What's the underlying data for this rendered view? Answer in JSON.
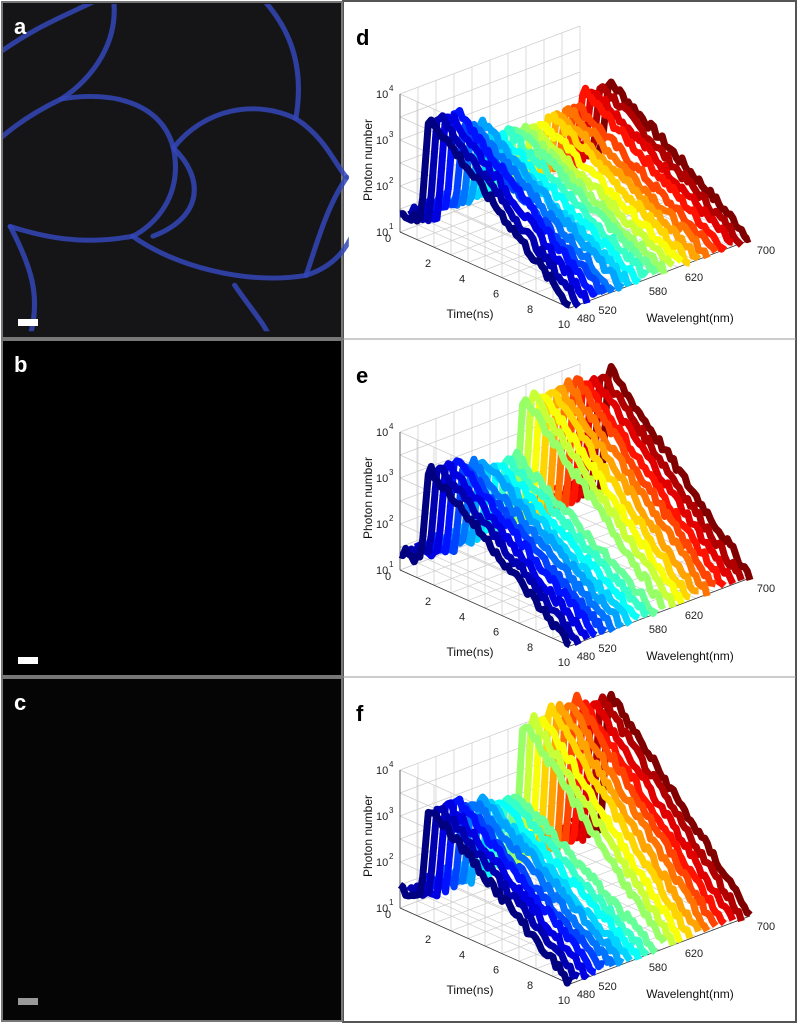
{
  "micrographs": [
    {
      "label": "a"
    },
    {
      "label": "b"
    },
    {
      "label": "c"
    }
  ],
  "plots": [
    {
      "label": "d",
      "y_label": "Photon number",
      "x_label": "Time(ns)",
      "z_label": "Wavelenght(nm)",
      "y_ticks": [
        {
          "base": "10",
          "exponent": "1"
        },
        {
          "base": "10",
          "exponent": "2"
        },
        {
          "base": "10",
          "exponent": "3"
        },
        {
          "base": "10",
          "exponent": "4"
        }
      ],
      "x_ticks": [
        "0",
        "2",
        "4",
        "6",
        "8",
        "10"
      ],
      "z_ticks": [
        "480",
        "520",
        "580",
        "620",
        "700"
      ]
    },
    {
      "label": "e",
      "y_label": "Photon number",
      "x_label": "Time(ns)",
      "z_label": "Wavelenght(nm)",
      "y_ticks": [
        {
          "base": "10",
          "exponent": "1"
        },
        {
          "base": "10",
          "exponent": "2"
        },
        {
          "base": "10",
          "exponent": "3"
        },
        {
          "base": "10",
          "exponent": "4"
        }
      ],
      "x_ticks": [
        "0",
        "2",
        "4",
        "6",
        "8",
        "10"
      ],
      "z_ticks": [
        "480",
        "520",
        "580",
        "620",
        "700"
      ]
    },
    {
      "label": "f",
      "y_label": "Photon number",
      "x_label": "Time(ns)",
      "z_label": "Wavelenght(nm)",
      "y_ticks": [
        {
          "base": "10",
          "exponent": "1"
        },
        {
          "base": "10",
          "exponent": "2"
        },
        {
          "base": "10",
          "exponent": "3"
        },
        {
          "base": "10",
          "exponent": "4"
        }
      ],
      "x_ticks": [
        "0",
        "2",
        "4",
        "6",
        "8",
        "10"
      ],
      "z_ticks": [
        "480",
        "520",
        "580",
        "620",
        "700"
      ]
    }
  ]
}
